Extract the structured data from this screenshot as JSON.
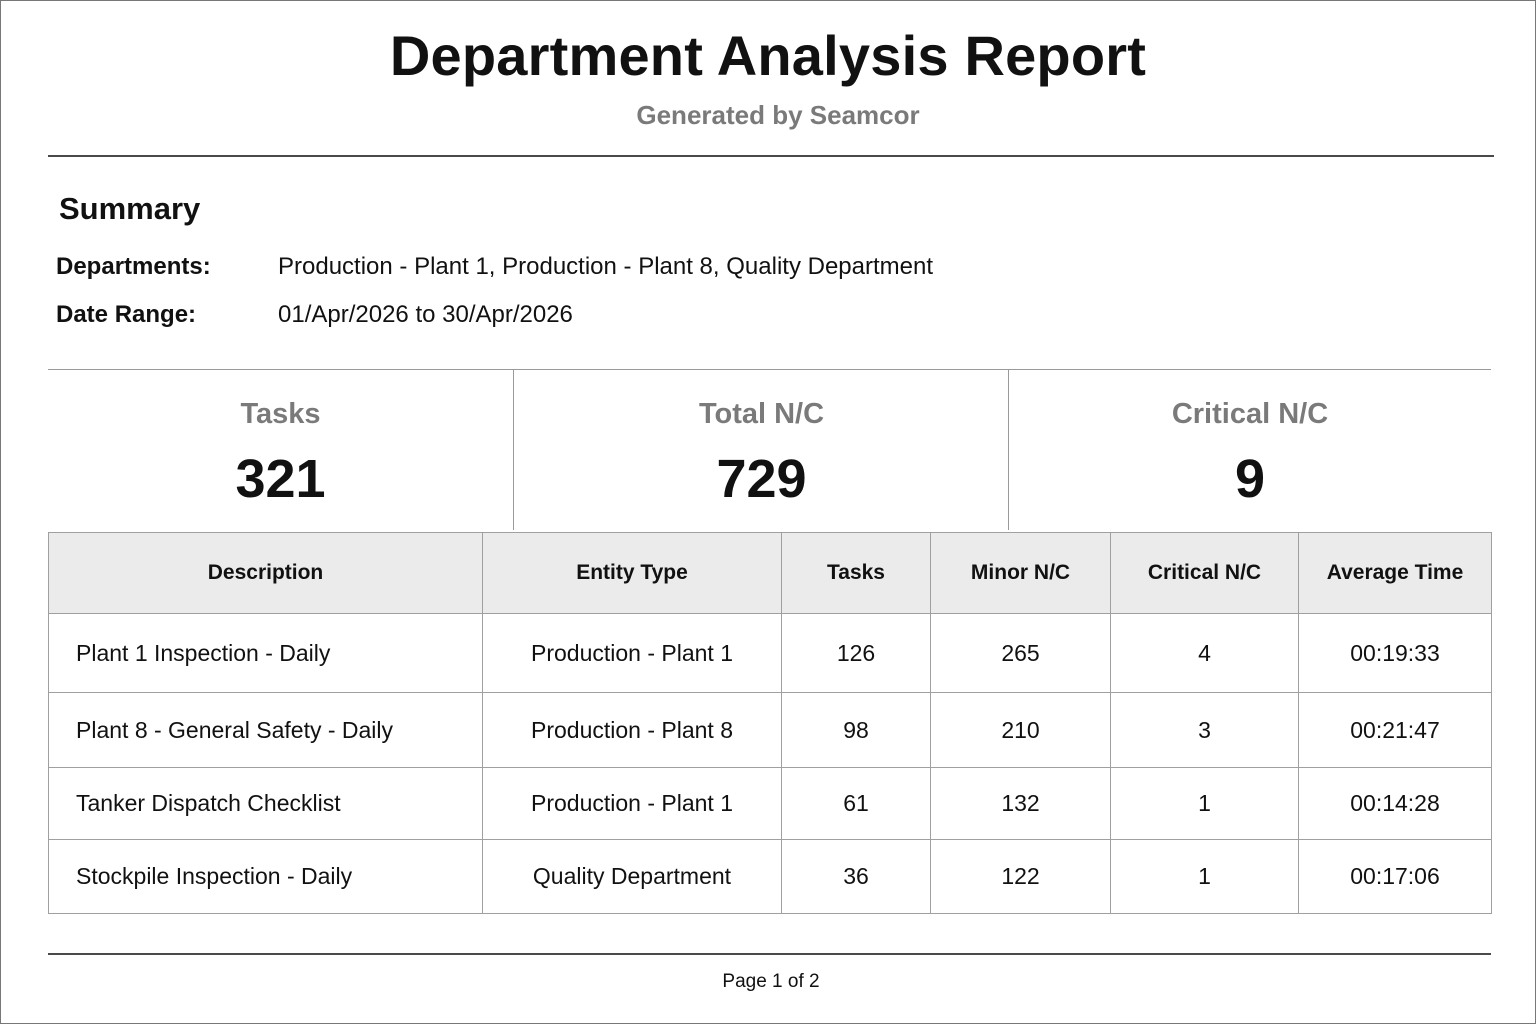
{
  "report": {
    "title": "Department Analysis Report",
    "subtitle": "Generated by Seamcor"
  },
  "summary": {
    "heading": "Summary",
    "departments_label": "Departments:",
    "departments_value": "Production - Plant 1, Production - Plant 8, Quality Department",
    "date_range_label": "Date Range:",
    "date_range_value": "01/Apr/2026 to 30/Apr/2026"
  },
  "stats": [
    {
      "label": "Tasks",
      "value": "321"
    },
    {
      "label": "Total N/C",
      "value": "729"
    },
    {
      "label": "Critical N/C",
      "value": "9"
    }
  ],
  "table": {
    "headers": [
      "Description",
      "Entity Type",
      "Tasks",
      "Minor N/C",
      "Critical N/C",
      "Average Time"
    ],
    "rows": [
      [
        "Plant 1 Inspection - Daily",
        "Production - Plant 1",
        "126",
        "265",
        "4",
        "00:19:33"
      ],
      [
        "Plant 8 - General Safety - Daily",
        "Production - Plant 8",
        "98",
        "210",
        "3",
        "00:21:47"
      ],
      [
        "Tanker Dispatch Checklist",
        "Production - Plant 1",
        "61",
        "132",
        "1",
        "00:14:28"
      ],
      [
        "Stockpile Inspection - Daily",
        "Quality Department",
        "36",
        "122",
        "1",
        "00:17:06"
      ]
    ]
  },
  "footer": {
    "page": "Page 1 of 2"
  }
}
